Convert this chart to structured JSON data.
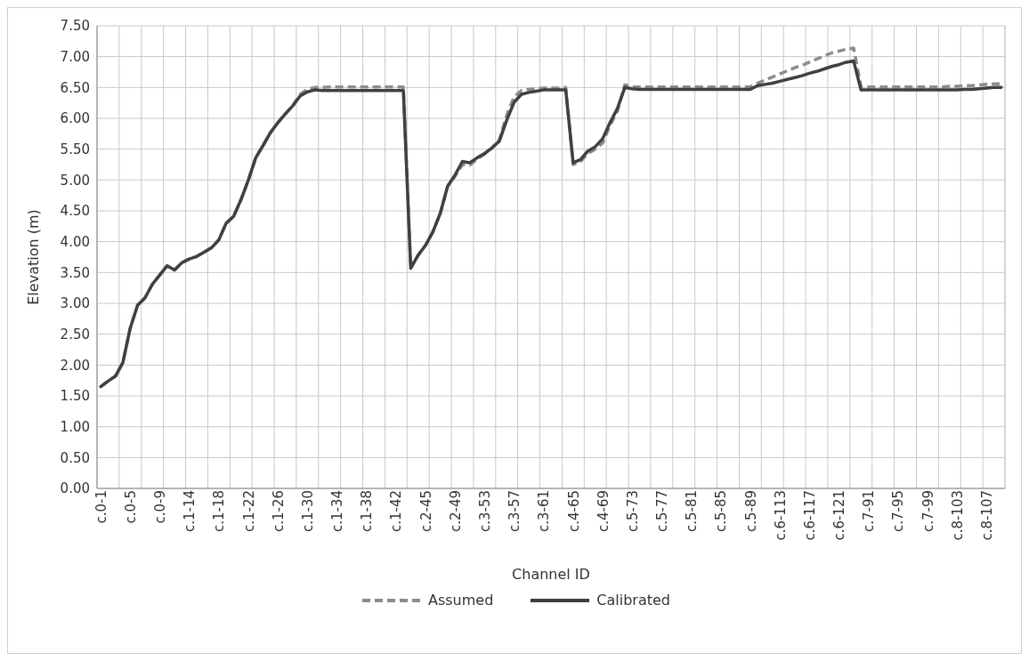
{
  "chart_data": {
    "type": "line",
    "xlabel": "Channel ID",
    "ylabel": "Elevation (m)",
    "categories": [
      "c.0-1",
      null,
      null,
      null,
      "c.0-5",
      null,
      null,
      null,
      "c.0-9",
      null,
      null,
      null,
      "c.1-14",
      null,
      null,
      null,
      "c.1-18",
      null,
      null,
      null,
      "c.1-22",
      null,
      null,
      null,
      "c.1-26",
      null,
      null,
      null,
      "c.1-30",
      null,
      null,
      null,
      "c.1-34",
      null,
      null,
      null,
      "c.1-38",
      null,
      null,
      null,
      "c.1-42",
      null,
      null,
      null,
      "c.2-45",
      null,
      null,
      null,
      "c.2-49",
      null,
      null,
      null,
      "c.3-53",
      null,
      null,
      null,
      "c.3-57",
      null,
      null,
      null,
      "c.3-61",
      null,
      null,
      null,
      "c.4-65",
      null,
      null,
      null,
      "c.4-69",
      null,
      null,
      null,
      "c.5-73",
      null,
      null,
      null,
      "c.5-77",
      null,
      null,
      null,
      "c.5-81",
      null,
      null,
      null,
      "c.5-85",
      null,
      null,
      null,
      "c.5-89",
      null,
      null,
      null,
      "c.6-113",
      null,
      null,
      null,
      "c.6-117",
      null,
      null,
      null,
      "c.6-121",
      null,
      null,
      null,
      "c.7-91",
      null,
      null,
      null,
      "c.7-95",
      null,
      null,
      null,
      "c.7-99",
      null,
      null,
      null,
      "c.8-103",
      null,
      null,
      null,
      "c.8-107",
      null,
      null
    ],
    "series": [
      {
        "name": "Assumed",
        "color": "#8c8c8c",
        "line_style": "dashed",
        "values": [
          1.65,
          1.74,
          1.82,
          2.04,
          2.6,
          2.97,
          3.09,
          3.31,
          3.46,
          3.61,
          3.54,
          3.66,
          3.72,
          3.76,
          3.83,
          3.9,
          4.03,
          4.3,
          4.41,
          4.68,
          5.0,
          5.36,
          5.56,
          5.77,
          5.93,
          6.07,
          6.2,
          6.39,
          6.47,
          6.5,
          6.5,
          6.51,
          6.51,
          6.51,
          6.51,
          6.51,
          6.51,
          6.51,
          6.51,
          6.51,
          6.51,
          6.51,
          3.57,
          3.78,
          3.94,
          4.16,
          4.46,
          4.9,
          5.06,
          5.25,
          5.24,
          5.34,
          5.42,
          5.52,
          5.65,
          6.05,
          6.35,
          6.45,
          6.47,
          6.48,
          6.49,
          6.49,
          6.49,
          6.5,
          5.25,
          5.3,
          5.43,
          5.5,
          5.6,
          5.88,
          6.12,
          6.54,
          6.51,
          6.51,
          6.51,
          6.51,
          6.51,
          6.51,
          6.51,
          6.51,
          6.51,
          6.51,
          6.51,
          6.51,
          6.51,
          6.51,
          6.51,
          6.51,
          6.51,
          6.57,
          6.62,
          6.67,
          6.72,
          6.77,
          6.82,
          6.86,
          6.91,
          6.96,
          7.01,
          7.06,
          7.09,
          7.12,
          7.14,
          6.51,
          6.51,
          6.51,
          6.51,
          6.51,
          6.51,
          6.51,
          6.51,
          6.51,
          6.51,
          6.51,
          6.51,
          6.52,
          6.52,
          6.53,
          6.53,
          6.54,
          6.55,
          6.56,
          6.56
        ]
      },
      {
        "name": "Calibrated",
        "color": "#404040",
        "line_style": "solid",
        "values": [
          1.65,
          1.74,
          1.82,
          2.04,
          2.6,
          2.97,
          3.09,
          3.31,
          3.46,
          3.61,
          3.54,
          3.66,
          3.72,
          3.76,
          3.83,
          3.9,
          4.03,
          4.3,
          4.41,
          4.68,
          5.0,
          5.36,
          5.56,
          5.77,
          5.93,
          6.07,
          6.2,
          6.36,
          6.43,
          6.46,
          6.45,
          6.45,
          6.45,
          6.45,
          6.45,
          6.45,
          6.45,
          6.45,
          6.45,
          6.45,
          6.45,
          6.45,
          3.57,
          3.78,
          3.94,
          4.16,
          4.46,
          4.9,
          5.08,
          5.3,
          5.28,
          5.36,
          5.43,
          5.52,
          5.63,
          5.97,
          6.26,
          6.39,
          6.42,
          6.44,
          6.46,
          6.46,
          6.46,
          6.46,
          5.28,
          5.33,
          5.47,
          5.54,
          5.67,
          5.93,
          6.16,
          6.5,
          6.48,
          6.47,
          6.47,
          6.47,
          6.47,
          6.47,
          6.47,
          6.47,
          6.47,
          6.47,
          6.47,
          6.47,
          6.47,
          6.47,
          6.47,
          6.47,
          6.47,
          6.53,
          6.55,
          6.57,
          6.6,
          6.63,
          6.66,
          6.69,
          6.73,
          6.76,
          6.8,
          6.84,
          6.87,
          6.91,
          6.93,
          6.46,
          6.46,
          6.46,
          6.46,
          6.46,
          6.46,
          6.46,
          6.46,
          6.46,
          6.46,
          6.46,
          6.46,
          6.46,
          6.46,
          6.47,
          6.47,
          6.48,
          6.49,
          6.5,
          6.5
        ]
      }
    ],
    "ylim": [
      0,
      7.5
    ],
    "yticks": [
      {
        "value": 0,
        "label": "0.00"
      },
      {
        "value": 0.5,
        "label": "0.50"
      },
      {
        "value": 1,
        "label": "1.00"
      },
      {
        "value": 1.5,
        "label": "1.50"
      },
      {
        "value": 2,
        "label": "2.00"
      },
      {
        "value": 2.5,
        "label": "2.50"
      },
      {
        "value": 3,
        "label": "3.00"
      },
      {
        "value": 3.5,
        "label": "3.50"
      },
      {
        "value": 4,
        "label": "4.00"
      },
      {
        "value": 4.5,
        "label": "4.50"
      },
      {
        "value": 5,
        "label": "5.00"
      },
      {
        "value": 5.5,
        "label": "5.50"
      },
      {
        "value": 6,
        "label": "6.00"
      },
      {
        "value": 6.5,
        "label": "6.50"
      },
      {
        "value": 7,
        "label": "7.00"
      },
      {
        "value": 7.5,
        "label": "7.50"
      }
    ],
    "grid": true,
    "legend": "bottom",
    "marker": "none"
  }
}
